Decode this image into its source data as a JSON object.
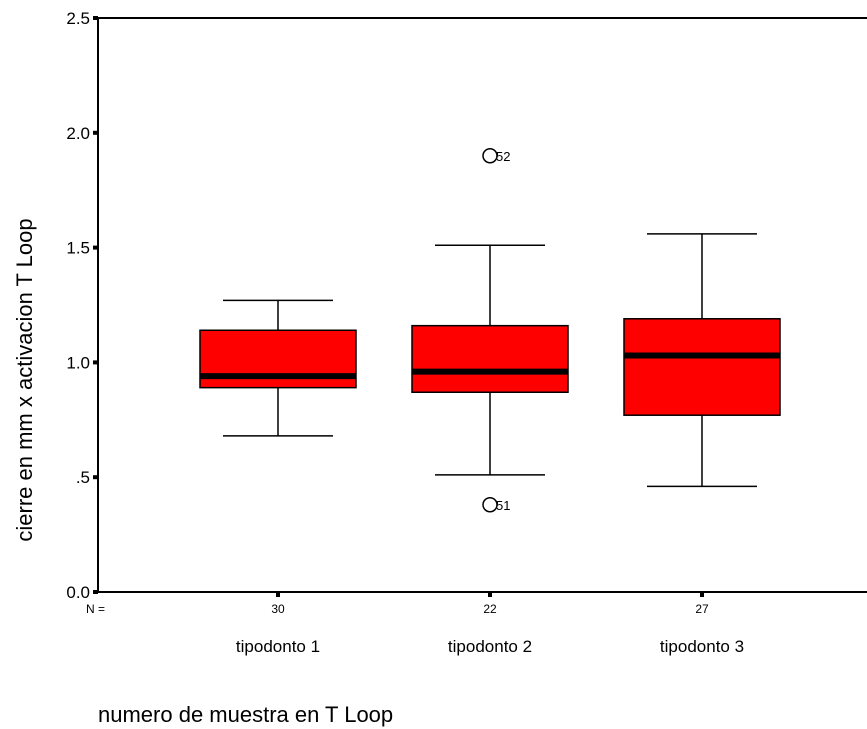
{
  "chart_data": {
    "type": "boxplot",
    "title": "",
    "xlabel": "numero de muestra en T Loop",
    "ylabel": "cierre en mm x activacion T Loop",
    "ylim": [
      0,
      2.5
    ],
    "yticks": [
      {
        "value": 0.0,
        "label": "0.0"
      },
      {
        "value": 0.5,
        "label": ".5"
      },
      {
        "value": 1.0,
        "label": "1.0"
      },
      {
        "value": 1.5,
        "label": "1.5"
      },
      {
        "value": 2.0,
        "label": "2.0"
      },
      {
        "value": 2.5,
        "label": "2.5"
      }
    ],
    "n_prefix": "N =",
    "box_color": "#ff0000",
    "grid": false,
    "categories": [
      "tipodonto 1",
      "tipodonto 2",
      "tipodonto 3"
    ],
    "boxes": [
      {
        "category": "tipodonto 1",
        "n": "30",
        "whisker_low": 0.68,
        "q1": 0.89,
        "median": 0.94,
        "q3": 1.14,
        "whisker_high": 1.27,
        "outliers": []
      },
      {
        "category": "tipodonto 2",
        "n": "22",
        "whisker_low": 0.51,
        "q1": 0.87,
        "median": 0.96,
        "q3": 1.16,
        "whisker_high": 1.51,
        "outliers": [
          {
            "value": 1.9,
            "label": "52"
          },
          {
            "value": 0.38,
            "label": "51"
          }
        ]
      },
      {
        "category": "tipodonto 3",
        "n": "27",
        "whisker_low": 0.46,
        "q1": 0.77,
        "median": 1.03,
        "q3": 1.19,
        "whisker_high": 1.56,
        "outliers": []
      }
    ]
  }
}
